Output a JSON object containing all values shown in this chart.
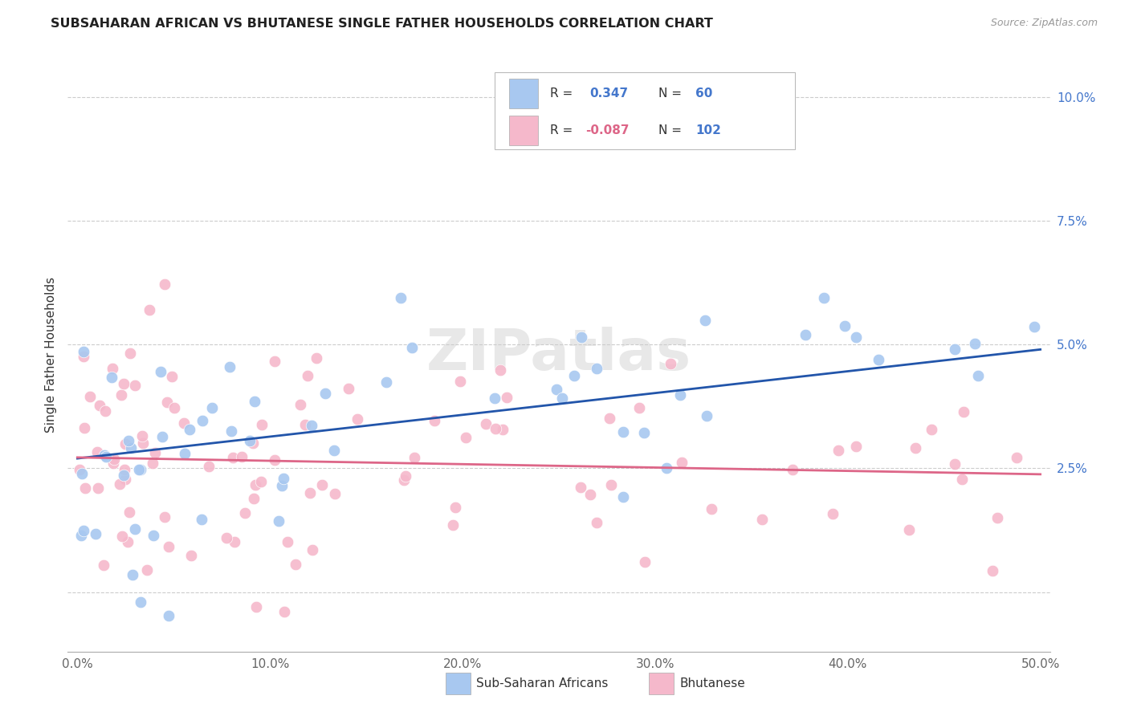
{
  "title": "SUBSAHARAN AFRICAN VS BHUTANESE SINGLE FATHER HOUSEHOLDS CORRELATION CHART",
  "source": "Source: ZipAtlas.com",
  "ylabel": "Single Father Households",
  "yticks": [
    0.0,
    0.025,
    0.05,
    0.075,
    0.1
  ],
  "ytick_labels": [
    "",
    "2.5%",
    "5.0%",
    "7.5%",
    "10.0%"
  ],
  "xticks": [
    0.0,
    0.1,
    0.2,
    0.3,
    0.4,
    0.5
  ],
  "xtick_labels": [
    "0.0%",
    "10.0%",
    "20.0%",
    "30.0%",
    "40.0%",
    "50.0%"
  ],
  "xlim": [
    -0.005,
    0.505
  ],
  "ylim": [
    -0.012,
    0.108
  ],
  "color_blue": "#A8C8F0",
  "color_pink": "#F5B8CB",
  "line_blue": "#2255AA",
  "line_pink": "#DD6688",
  "blue_line_x": [
    0.0,
    0.5
  ],
  "blue_line_y": [
    0.027,
    0.049
  ],
  "pink_line_x": [
    0.0,
    0.5
  ],
  "pink_line_y": [
    0.0272,
    0.0238
  ],
  "seed_blue": 17,
  "seed_pink": 7,
  "N_blue": 60,
  "N_pink": 102
}
